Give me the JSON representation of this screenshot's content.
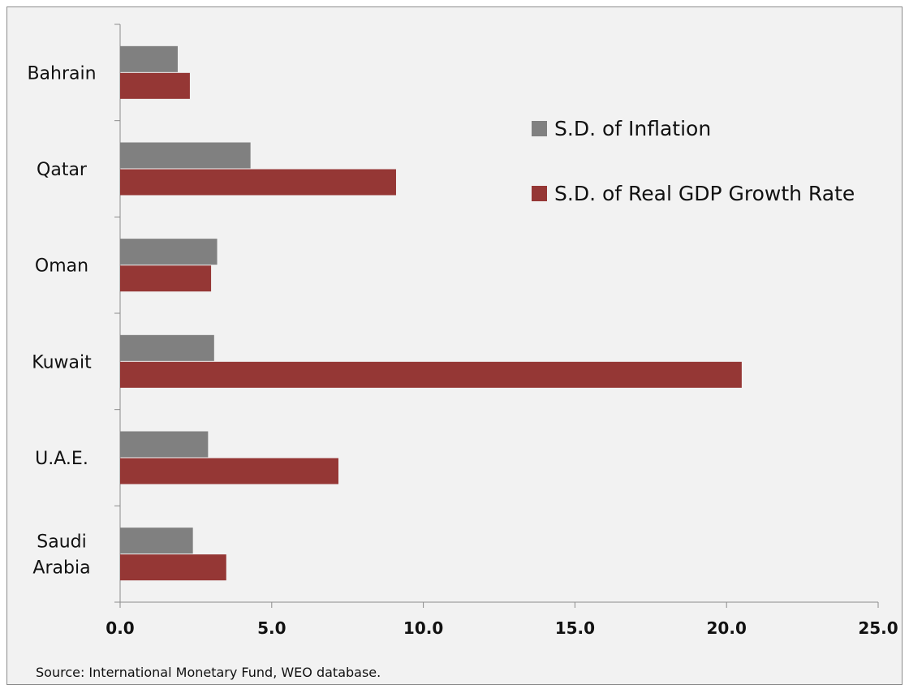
{
  "chart_data": {
    "type": "bar",
    "orientation": "horizontal",
    "categories": [
      "Bahrain",
      "Qatar",
      "Oman",
      "Kuwait",
      "U.A.E.",
      "Saudi Arabia"
    ],
    "category_lines": [
      [
        "Bahrain"
      ],
      [
        "Qatar"
      ],
      [
        "Oman"
      ],
      [
        "Kuwait"
      ],
      [
        "U.A.E."
      ],
      [
        "Saudi",
        "Arabia"
      ]
    ],
    "series": [
      {
        "name": "S.D. of Inflation",
        "color": "#808080",
        "values": [
          1.9,
          4.3,
          3.2,
          3.1,
          2.9,
          2.4
        ]
      },
      {
        "name": "S.D. of Real GDP Growth Rate",
        "color": "#953735",
        "values": [
          2.3,
          9.1,
          3.0,
          20.5,
          7.2,
          3.5
        ]
      }
    ],
    "xlim": [
      0,
      25
    ],
    "xticks": [
      "0.0",
      "5.0",
      "10.0",
      "15.0",
      "20.0",
      "25.0"
    ],
    "legend_position": "top-right",
    "grid": false
  },
  "source_note": "Source: International Monetary Fund, WEO database."
}
